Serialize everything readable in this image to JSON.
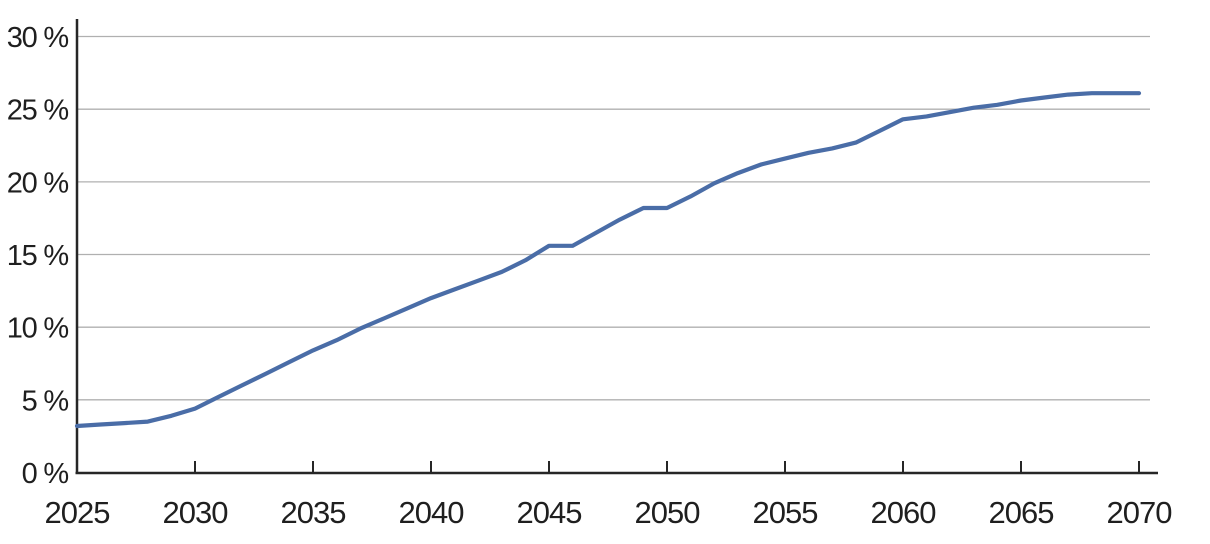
{
  "chart_data": {
    "type": "line",
    "title": "",
    "xlabel": "",
    "ylabel": "",
    "xlim": [
      2025,
      2070
    ],
    "ylim": [
      0,
      30
    ],
    "grid": "horizontal",
    "legend": "none",
    "x": [
      2025,
      2026,
      2027,
      2028,
      2029,
      2030,
      2031,
      2032,
      2033,
      2034,
      2035,
      2036,
      2037,
      2038,
      2039,
      2040,
      2041,
      2042,
      2043,
      2044,
      2045,
      2046,
      2047,
      2048,
      2049,
      2050,
      2051,
      2052,
      2053,
      2054,
      2055,
      2056,
      2057,
      2058,
      2059,
      2060,
      2061,
      2062,
      2063,
      2064,
      2065,
      2066,
      2067,
      2068,
      2069,
      2070
    ],
    "series": [
      {
        "values": [
          3.2,
          3.3,
          3.4,
          3.5,
          3.9,
          4.4,
          5.2,
          6.0,
          6.8,
          7.6,
          8.4,
          9.1,
          9.9,
          10.6,
          11.3,
          12.0,
          12.6,
          13.2,
          13.8,
          14.6,
          15.6,
          15.6,
          16.5,
          17.4,
          18.2,
          18.2,
          19.0,
          19.9,
          20.6,
          21.2,
          21.6,
          22.0,
          22.3,
          22.7,
          23.5,
          24.3,
          24.5,
          24.8,
          25.1,
          25.3,
          25.6,
          25.8,
          26.0,
          26.1,
          26.1,
          26.1
        ]
      }
    ],
    "yticks": [
      {
        "value": 0,
        "label": "0 %"
      },
      {
        "value": 5,
        "label": "5 %"
      },
      {
        "value": 10,
        "label": "10 %"
      },
      {
        "value": 15,
        "label": "15 %"
      },
      {
        "value": 20,
        "label": "20 %"
      },
      {
        "value": 25,
        "label": "25 %"
      },
      {
        "value": 30,
        "label": "30 %"
      }
    ],
    "xticks": [
      {
        "value": 2025,
        "label": "2025"
      },
      {
        "value": 2030,
        "label": "2030"
      },
      {
        "value": 2035,
        "label": "2035"
      },
      {
        "value": 2040,
        "label": "2040"
      },
      {
        "value": 2045,
        "label": "2045"
      },
      {
        "value": 2050,
        "label": "2050"
      },
      {
        "value": 2055,
        "label": "2055"
      },
      {
        "value": 2060,
        "label": "2060"
      },
      {
        "value": 2065,
        "label": "2065"
      },
      {
        "value": 2070,
        "label": "2070"
      }
    ],
    "colors": {
      "line": "#4a6da7",
      "grid": "#b0b0b0",
      "axis": "#262626",
      "text": "#1f1f1f",
      "background": "#ffffff"
    }
  }
}
